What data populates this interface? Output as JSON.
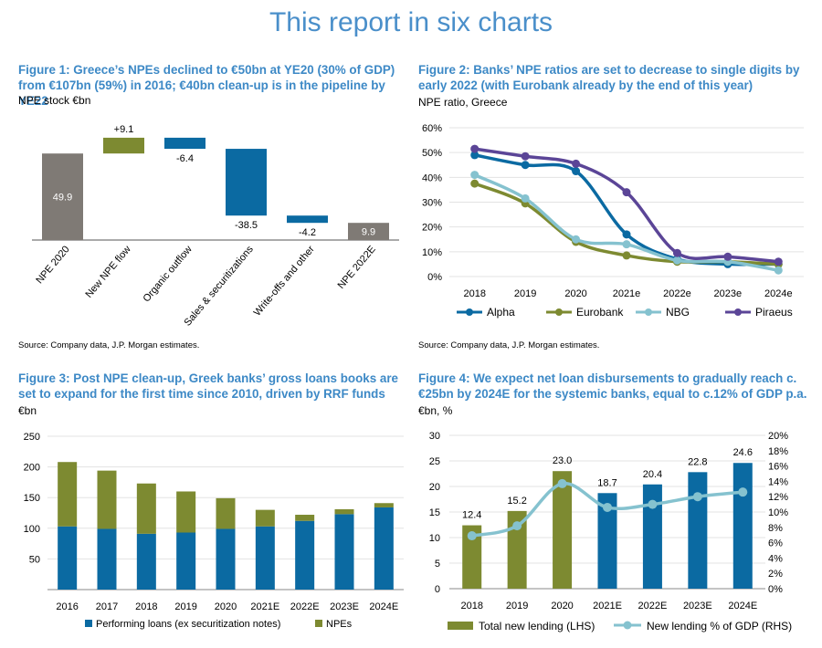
{
  "page": {
    "title": "This report in six charts"
  },
  "chart_data": [
    {
      "type": "waterfall",
      "title": "Figure 1: Greece’s NPEs declined to €50bn at YE20 (30% of GDP) from €107bn (59%) in 2016; €40bn clean-up is in the pipeline by YE22",
      "unit": "NPE stock €bn",
      "source": "Source: Company data, J.P. Morgan estimates.",
      "categories": [
        "NPE 2020",
        "New NPE flow",
        "Organic outflow",
        "Sales & securitizations",
        "Write-offs and other",
        "NPE 2022E"
      ],
      "values": [
        49.9,
        9.1,
        -6.4,
        -38.5,
        -4.2,
        9.9
      ],
      "labels": [
        "49.9",
        "+9.1",
        "-6.4",
        "-38.5",
        "-4.2",
        "9.9"
      ],
      "kinds": [
        "total",
        "increase",
        "decrease",
        "decrease",
        "decrease",
        "total"
      ],
      "colors": {
        "total": "#7f7a75",
        "increase": "#7d8a31",
        "decrease": "#0b6aa2"
      }
    },
    {
      "type": "line",
      "title": "Figure 2: Banks’ NPE ratios are set to decrease to single digits by early 2022 (with Eurobank already by the end of this year)",
      "unit": "NPE ratio, Greece",
      "source": "Source: Company data, J.P. Morgan estimates.",
      "x": [
        "2018",
        "2019",
        "2020",
        "2021e",
        "2022e",
        "2023e",
        "2024e"
      ],
      "ylim": [
        0,
        60
      ],
      "yticks": [
        0,
        10,
        20,
        30,
        40,
        50,
        60
      ],
      "ytick_labels": [
        "0%",
        "10%",
        "20%",
        "30%",
        "40%",
        "50%",
        "60%"
      ],
      "series": [
        {
          "name": "Alpha",
          "color": "#0b6aa2",
          "values": [
            49,
            45,
            42.5,
            17,
            7,
            5,
            5
          ]
        },
        {
          "name": "Eurobank",
          "color": "#7d8a31",
          "values": [
            37.5,
            29.5,
            14,
            8.5,
            6,
            6,
            5
          ]
        },
        {
          "name": "NBG",
          "color": "#85c2cf",
          "values": [
            41,
            31.5,
            15,
            13,
            6.5,
            6,
            2.5
          ]
        },
        {
          "name": "Piraeus",
          "color": "#5b4597",
          "values": [
            51.5,
            48.5,
            45.5,
            34,
            9.5,
            8,
            6
          ]
        }
      ]
    },
    {
      "type": "bar",
      "stacked": true,
      "title": "Figure 3: Post NPE clean-up, Greek banks’ gross loans books are set to expand for the first time since 2010, driven by RRF funds",
      "unit": "€bn",
      "categories": [
        "2016",
        "2017",
        "2018",
        "2019",
        "2020",
        "2021E",
        "2022E",
        "2023E",
        "2024E"
      ],
      "ylim": [
        0,
        250
      ],
      "yticks": [
        50,
        100,
        150,
        200,
        250
      ],
      "series": [
        {
          "name": "Performing loans (ex securitization notes)",
          "color": "#0b6aa2",
          "values": [
            103,
            99,
            91,
            93,
            99,
            103,
            112,
            123,
            134
          ]
        },
        {
          "name": "NPEs",
          "color": "#7d8a31",
          "values": [
            105,
            95,
            82,
            67,
            50,
            27,
            10,
            8,
            7
          ]
        }
      ]
    },
    {
      "type": "bar+line",
      "title": "Figure 4: We expect net loan disbursements to gradually reach c.€25bn by 2024E for the systemic banks, equal to c.12% of GDP p.a.",
      "unit": "€bn, %",
      "categories": [
        "2018",
        "2019",
        "2020",
        "2021E",
        "2022E",
        "2023E",
        "2024E"
      ],
      "ylim_left": [
        0,
        30
      ],
      "yticks_left": [
        0,
        5,
        10,
        15,
        20,
        25,
        30
      ],
      "ylim_right": [
        0,
        20
      ],
      "yticks_right": [
        0,
        2,
        4,
        6,
        8,
        10,
        12,
        14,
        16,
        18,
        20
      ],
      "ytick_right_labels": [
        "0%",
        "2%",
        "4%",
        "6%",
        "8%",
        "10%",
        "12%",
        "14%",
        "16%",
        "18%",
        "20%"
      ],
      "bars": {
        "name": "Total new lending (LHS)",
        "values": [
          12.4,
          15.2,
          23.0,
          18.7,
          20.4,
          22.8,
          24.6
        ],
        "labels": [
          "12.4",
          "15.2",
          "23.0",
          "18.7",
          "20.4",
          "22.8",
          "24.6"
        ],
        "colors": [
          "#7d8a31",
          "#7d8a31",
          "#7d8a31",
          "#0b6aa2",
          "#0b6aa2",
          "#0b6aa2",
          "#0b6aa2"
        ]
      },
      "line": {
        "name": "New lending % of GDP (RHS)",
        "color": "#85c2cf",
        "values": [
          6.9,
          8.2,
          13.7,
          10.6,
          11.0,
          12.0,
          12.6
        ]
      }
    }
  ]
}
